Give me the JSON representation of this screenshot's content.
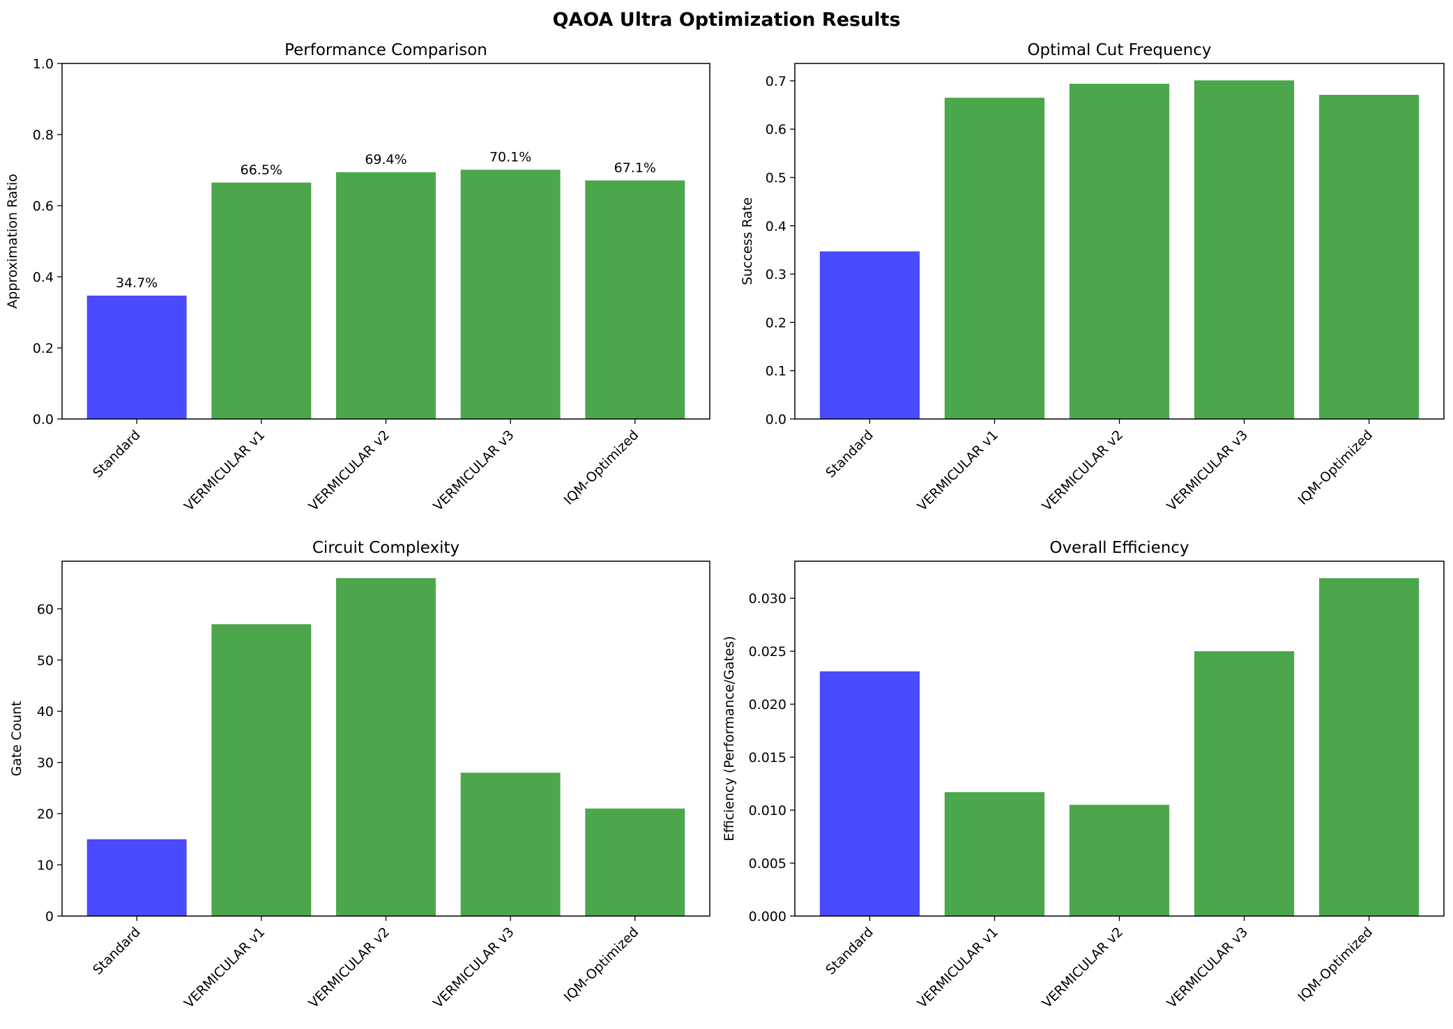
{
  "figure": {
    "title": "QAOA Ultra Optimization Results"
  },
  "colors": {
    "baseline": "#4a4aff",
    "variant": "#4ca64c"
  },
  "chart_data": [
    {
      "type": "bar",
      "title": "Performance Comparison",
      "xlabel": "",
      "ylabel": "Approximation Ratio",
      "categories": [
        "Standard",
        "VERMICULAR v1",
        "VERMICULAR v2",
        "VERMICULAR v3",
        "IQM-Optimized"
      ],
      "values": [
        0.347,
        0.665,
        0.694,
        0.701,
        0.671
      ],
      "data_labels": [
        "34.7%",
        "66.5%",
        "69.4%",
        "70.1%",
        "67.1%"
      ],
      "ylim": [
        0,
        1.0
      ],
      "yticks": [
        0.0,
        0.2,
        0.4,
        0.6,
        0.8,
        1.0
      ],
      "ytick_labels": [
        "0.0",
        "0.2",
        "0.4",
        "0.6",
        "0.8",
        "1.0"
      ],
      "bar_colors": [
        "baseline",
        "variant",
        "variant",
        "variant",
        "variant"
      ]
    },
    {
      "type": "bar",
      "title": "Optimal Cut Frequency",
      "xlabel": "",
      "ylabel": "Success Rate",
      "categories": [
        "Standard",
        "VERMICULAR v1",
        "VERMICULAR v2",
        "VERMICULAR v3",
        "IQM-Optimized"
      ],
      "values": [
        0.347,
        0.665,
        0.694,
        0.701,
        0.671
      ],
      "ylim": [
        0,
        0.736
      ],
      "yticks": [
        0.0,
        0.1,
        0.2,
        0.3,
        0.4,
        0.5,
        0.6,
        0.7
      ],
      "ytick_labels": [
        "0.0",
        "0.1",
        "0.2",
        "0.3",
        "0.4",
        "0.5",
        "0.6",
        "0.7"
      ],
      "bar_colors": [
        "baseline",
        "variant",
        "variant",
        "variant",
        "variant"
      ]
    },
    {
      "type": "bar",
      "title": "Circuit Complexity",
      "xlabel": "",
      "ylabel": "Gate Count",
      "categories": [
        "Standard",
        "VERMICULAR v1",
        "VERMICULAR v2",
        "VERMICULAR v3",
        "IQM-Optimized"
      ],
      "values": [
        15,
        57,
        66,
        28,
        21
      ],
      "ylim": [
        0,
        69.3
      ],
      "yticks": [
        0,
        10,
        20,
        30,
        40,
        50,
        60
      ],
      "ytick_labels": [
        "0",
        "10",
        "20",
        "30",
        "40",
        "50",
        "60"
      ],
      "bar_colors": [
        "baseline",
        "variant",
        "variant",
        "variant",
        "variant"
      ]
    },
    {
      "type": "bar",
      "title": "Overall Efficiency",
      "xlabel": "",
      "ylabel": "Efficiency (Performance/Gates)",
      "categories": [
        "Standard",
        "VERMICULAR v1",
        "VERMICULAR v2",
        "VERMICULAR v3",
        "IQM-Optimized"
      ],
      "values": [
        0.0231,
        0.0117,
        0.0105,
        0.025,
        0.0319
      ],
      "ylim": [
        0,
        0.0335
      ],
      "yticks": [
        0.0,
        0.005,
        0.01,
        0.015,
        0.02,
        0.025,
        0.03
      ],
      "ytick_labels": [
        "0.000",
        "0.005",
        "0.010",
        "0.015",
        "0.020",
        "0.025",
        "0.030"
      ],
      "bar_colors": [
        "baseline",
        "variant",
        "variant",
        "variant",
        "variant"
      ]
    }
  ]
}
